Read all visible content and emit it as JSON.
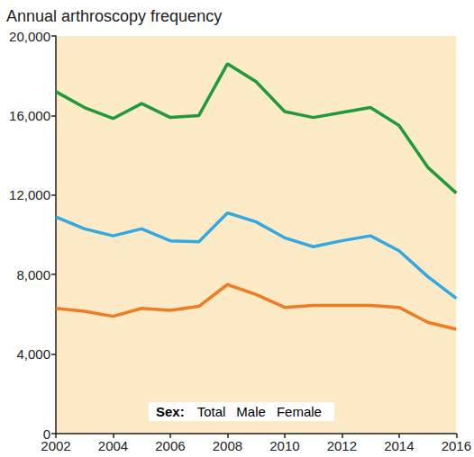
{
  "chart_data": {
    "type": "line",
    "title": "Annual arthroscopy frequency",
    "legend_title": "Sex:",
    "legend": "bottom",
    "grid": false,
    "x": [
      2002,
      2003,
      2004,
      2005,
      2006,
      2007,
      2008,
      2009,
      2010,
      2011,
      2012,
      2013,
      2014,
      2015,
      2016
    ],
    "xlim": [
      2002,
      2016
    ],
    "xticks": [
      2002,
      2004,
      2006,
      2008,
      2010,
      2012,
      2014,
      2016
    ],
    "ylim": [
      0,
      20000
    ],
    "yticks": [
      0,
      {
        "value": 4000,
        "label": "4,000"
      },
      {
        "value": 8000,
        "label": "8,000"
      },
      {
        "value": 12000,
        "label": "12,000"
      },
      {
        "value": 16000,
        "label": "16,000"
      },
      {
        "value": 20000,
        "label": "20,000"
      }
    ],
    "series": [
      {
        "name": "Total",
        "color": "#1f9a3c",
        "values": [
          17200,
          16400,
          15850,
          16600,
          15900,
          16000,
          18600,
          17700,
          16200,
          15900,
          16150,
          16400,
          15500,
          13400,
          12100
        ]
      },
      {
        "name": "Male",
        "color": "#34a8e0",
        "values": [
          10900,
          10300,
          9950,
          10300,
          9700,
          9650,
          11100,
          10650,
          9850,
          9400,
          9700,
          9950,
          9200,
          7900,
          6800
        ]
      },
      {
        "name": "Female",
        "color": "#f07b22",
        "values": [
          6300,
          6150,
          5900,
          6300,
          6200,
          6400,
          7500,
          7000,
          6350,
          6450,
          6450,
          6450,
          6350,
          5600,
          5250
        ]
      }
    ]
  }
}
